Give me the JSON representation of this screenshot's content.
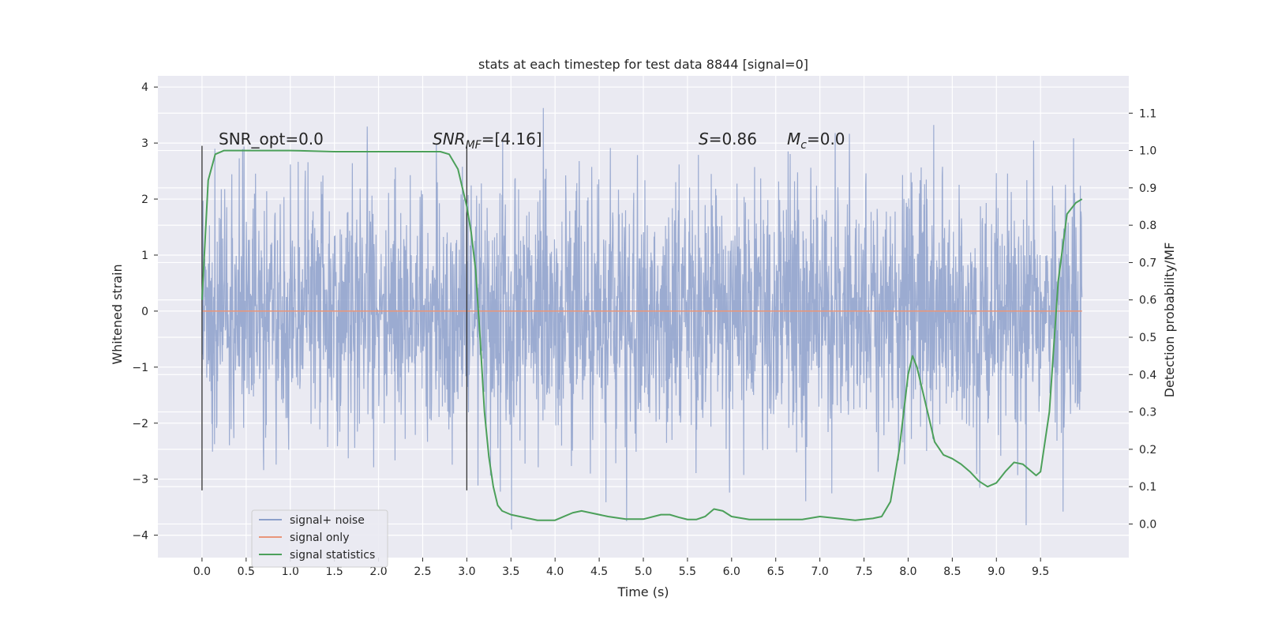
{
  "chart_data": {
    "type": "line",
    "title": "stats at each timestep for test data 8844 [signal=0]",
    "xlabel": "Time (s)",
    "ylabel": "Whitened strain",
    "y2label": "Detection probability/MF",
    "xlim": [
      -0.5,
      10.5
    ],
    "ylim": [
      -4.4,
      4.2
    ],
    "y2lim": [
      -0.09,
      1.2
    ],
    "x_ticks": [
      "0.0",
      "0.5",
      "1.0",
      "1.5",
      "2.0",
      "2.5",
      "3.0",
      "3.5",
      "4.0",
      "4.5",
      "5.0",
      "5.5",
      "6.0",
      "6.5",
      "7.0",
      "7.5",
      "8.0",
      "8.5",
      "9.0",
      "9.5"
    ],
    "y_ticks": [
      "4",
      "3",
      "2",
      "1",
      "0",
      "−1",
      "−2",
      "−3",
      "−4"
    ],
    "y2_ticks": [
      "1.1",
      "1.0",
      "0.9",
      "0.8",
      "0.7",
      "0.6",
      "0.5",
      "0.4",
      "0.3",
      "0.2",
      "0.1",
      "0.0"
    ],
    "grid": true,
    "legend_position": "lower-left",
    "annotations": {
      "snr_opt": "SNR_opt=0.0",
      "snr_mf_main": "SNR",
      "snr_mf_sub": "MF",
      "snr_mf_value": "=[4.16]",
      "s_var": "S",
      "s_value": "=0.86",
      "mc_main": "M",
      "mc_sub": "c",
      "mc_value": "=0.0"
    },
    "series": [
      {
        "name": "signal+ noise",
        "color": "#8da0cb",
        "note": "whitened strain noise, roughly within -3.9 to 3.8, dense band ~ -2 to 2",
        "x_range": [
          0.0,
          9.97
        ],
        "y_envelope": [
          -3.9,
          3.8
        ]
      },
      {
        "name": "signal only",
        "color": "#e9967a",
        "x": [
          0.0,
          9.97
        ],
        "y": [
          0.0,
          0.0
        ]
      },
      {
        "name": "signal statistics",
        "color": "#4ca05a",
        "axis": "right",
        "x": [
          0.0,
          0.07,
          0.15,
          0.25,
          0.5,
          1.0,
          1.5,
          2.0,
          2.5,
          2.7,
          2.8,
          2.9,
          3.0,
          3.05,
          3.1,
          3.15,
          3.2,
          3.25,
          3.3,
          3.35,
          3.4,
          3.5,
          3.6,
          3.8,
          4.0,
          4.1,
          4.2,
          4.3,
          4.4,
          4.6,
          4.8,
          5.0,
          5.2,
          5.3,
          5.4,
          5.5,
          5.6,
          5.7,
          5.8,
          5.9,
          6.0,
          6.2,
          6.5,
          6.8,
          7.0,
          7.2,
          7.4,
          7.6,
          7.7,
          7.8,
          7.9,
          8.0,
          8.05,
          8.1,
          8.2,
          8.3,
          8.4,
          8.5,
          8.6,
          8.7,
          8.8,
          8.9,
          9.0,
          9.1,
          9.2,
          9.3,
          9.4,
          9.45,
          9.5,
          9.6,
          9.7,
          9.8,
          9.9,
          9.97
        ],
        "y": [
          0.6,
          0.92,
          0.99,
          1.0,
          1.0,
          1.0,
          0.997,
          0.997,
          0.997,
          0.997,
          0.99,
          0.95,
          0.85,
          0.78,
          0.68,
          0.5,
          0.3,
          0.18,
          0.1,
          0.05,
          0.035,
          0.025,
          0.02,
          0.01,
          0.01,
          0.02,
          0.03,
          0.035,
          0.03,
          0.02,
          0.013,
          0.013,
          0.025,
          0.025,
          0.018,
          0.012,
          0.012,
          0.02,
          0.04,
          0.035,
          0.02,
          0.012,
          0.012,
          0.012,
          0.02,
          0.015,
          0.01,
          0.015,
          0.02,
          0.06,
          0.2,
          0.4,
          0.45,
          0.42,
          0.32,
          0.22,
          0.185,
          0.175,
          0.16,
          0.14,
          0.115,
          0.1,
          0.11,
          0.14,
          0.165,
          0.16,
          0.14,
          0.13,
          0.14,
          0.3,
          0.65,
          0.83,
          0.86,
          0.87
        ]
      }
    ],
    "vertical_lines": [
      {
        "x": 0.0,
        "y_from": -3.2,
        "y_to": 2.95
      },
      {
        "x": 3.0,
        "y_from": -3.2,
        "y_to": 2.95
      }
    ]
  }
}
